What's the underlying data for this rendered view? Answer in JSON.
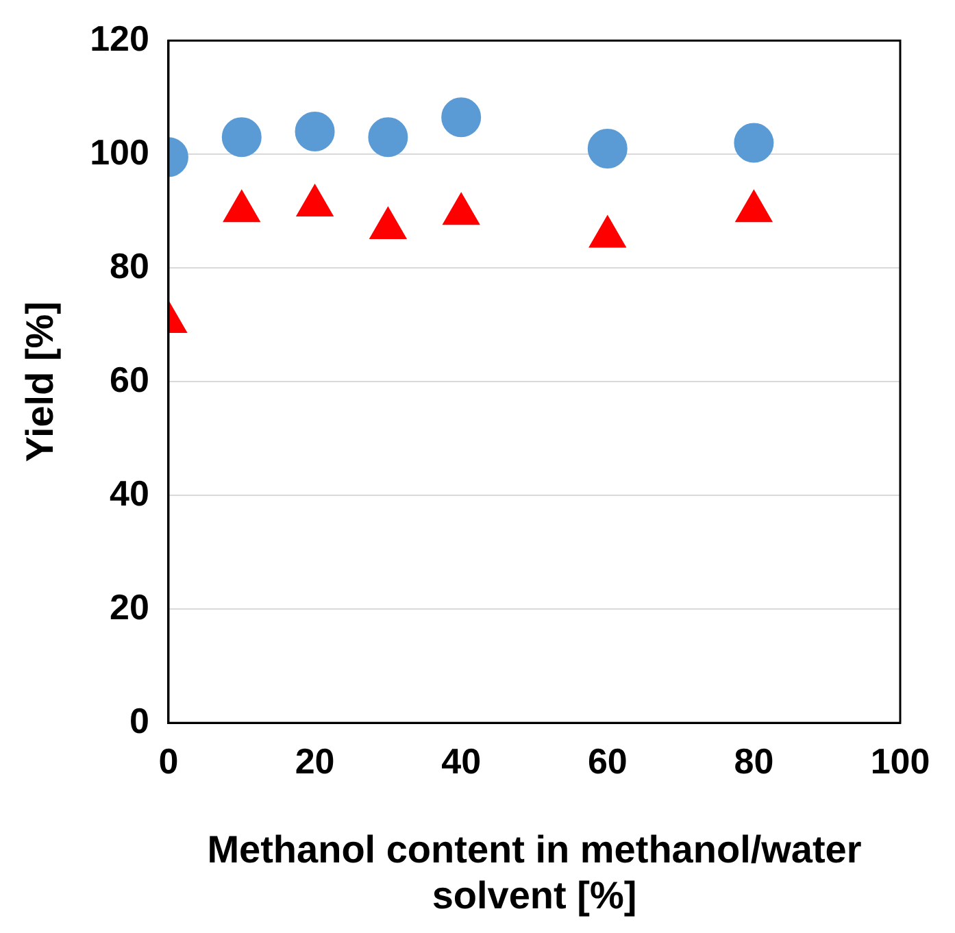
{
  "chart_data": {
    "type": "scatter",
    "xlabel": "Methanol content in methanol/water solvent [%]",
    "ylabel": "Yield [%]",
    "x": [
      0,
      10,
      20,
      30,
      40,
      60,
      80
    ],
    "series": [
      {
        "color": "#5b9bd5",
        "marker": "circle",
        "values": [
          99.5,
          103,
          104,
          103,
          106.5,
          101,
          102
        ]
      },
      {
        "color": "#ff0000",
        "marker": "triangle",
        "values": [
          70.5,
          90,
          91,
          87,
          89.5,
          85.5,
          90
        ]
      }
    ],
    "xlim": [
      0,
      100
    ],
    "xticks": [
      0,
      20,
      40,
      60,
      80,
      100
    ],
    "ylim": [
      0,
      120
    ],
    "yticks": [
      0,
      20,
      40,
      60,
      80,
      100,
      120
    ],
    "grid": "y",
    "legend": false
  }
}
